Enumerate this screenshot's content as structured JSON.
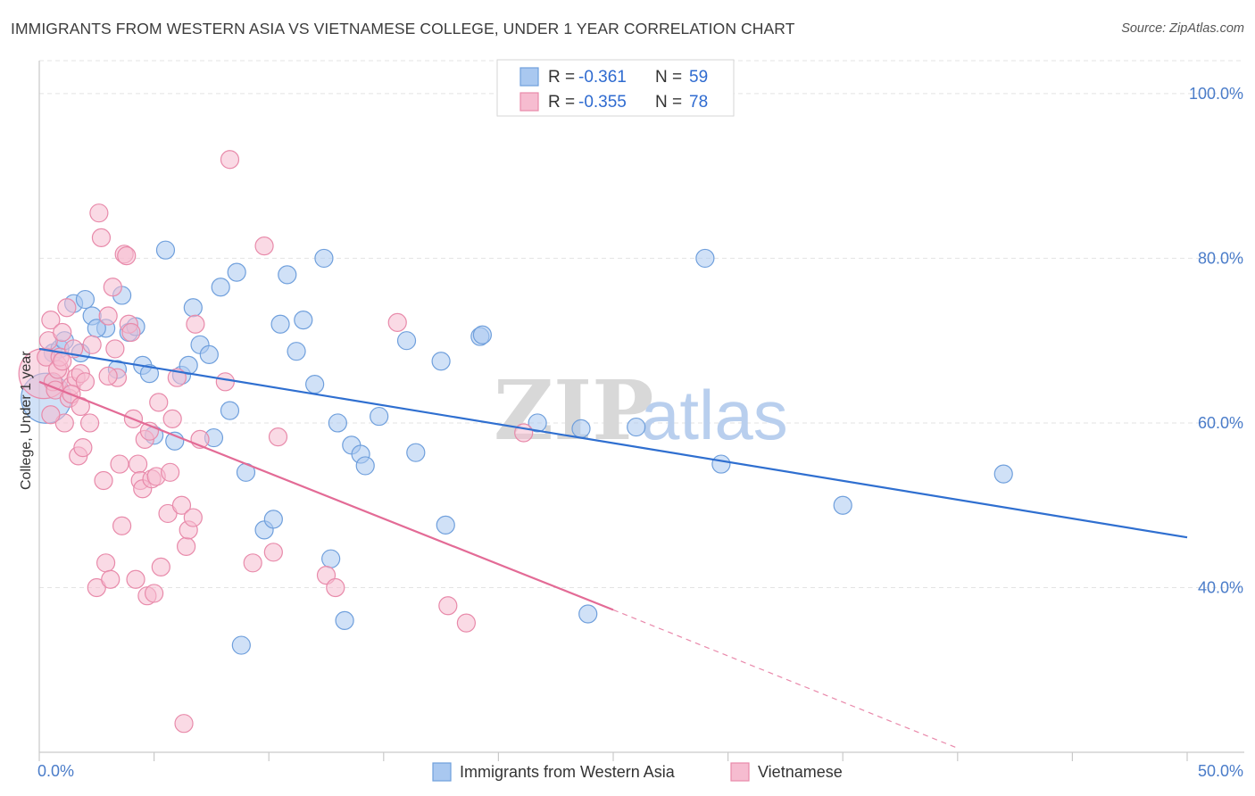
{
  "title": "IMMIGRANTS FROM WESTERN ASIA VS VIETNAMESE COLLEGE, UNDER 1 YEAR CORRELATION CHART",
  "source": "Source: ZipAtlas.com",
  "watermark": {
    "zip": "ZIP",
    "atlas": "atlas"
  },
  "legend": {
    "r_label": "R =",
    "n_label": "N =",
    "entries": [
      {
        "r": "-0.361",
        "n": "59",
        "color": "#a9c8f0",
        "stroke": "#6f9fdc"
      },
      {
        "r": "-0.355",
        "n": "78",
        "color": "#f6bcd0",
        "stroke": "#e88aaa"
      }
    ]
  },
  "chart_data": {
    "type": "scatter",
    "xlabel": "",
    "ylabel": "College, Under 1 year",
    "xlim": [
      0,
      50
    ],
    "ylim": [
      20,
      104
    ],
    "x_ticks": [
      {
        "value": 0,
        "label": "0.0%"
      },
      {
        "value": 50,
        "label": "50.0%"
      }
    ],
    "y_ticks": [
      {
        "value": 100,
        "label": "100.0%"
      },
      {
        "value": 80,
        "label": "80.0%"
      },
      {
        "value": 60,
        "label": "60.0%"
      },
      {
        "value": 40,
        "label": "40.0%"
      }
    ],
    "grid": true,
    "legend_position": "top-center",
    "series": [
      {
        "name": "Immigrants from Western Asia",
        "color": "#a9c8f0",
        "stroke": "#6f9fdc",
        "line_color": "#2f6fd0",
        "trend": {
          "x0": 0,
          "y0": 69.0,
          "x1": 50,
          "y1": 46.1,
          "dash_from": null
        },
        "points": [
          [
            0.3,
            63.0
          ],
          [
            0.6,
            68.5
          ],
          [
            0.9,
            69.0
          ],
          [
            1.1,
            70.0
          ],
          [
            1.5,
            74.5
          ],
          [
            1.8,
            68.5
          ],
          [
            2.0,
            75.0
          ],
          [
            2.3,
            73.0
          ],
          [
            2.9,
            71.5
          ],
          [
            3.4,
            66.5
          ],
          [
            3.6,
            75.5
          ],
          [
            3.9,
            71.0
          ],
          [
            4.2,
            71.7
          ],
          [
            4.5,
            67.0
          ],
          [
            4.8,
            66.0
          ],
          [
            5.0,
            58.5
          ],
          [
            5.5,
            81.0
          ],
          [
            5.9,
            57.8
          ],
          [
            6.2,
            65.8
          ],
          [
            6.5,
            67.0
          ],
          [
            6.7,
            74.0
          ],
          [
            7.0,
            69.5
          ],
          [
            7.4,
            68.3
          ],
          [
            7.6,
            58.2
          ],
          [
            7.9,
            76.5
          ],
          [
            8.3,
            61.5
          ],
          [
            8.6,
            78.3
          ],
          [
            8.8,
            33.0
          ],
          [
            9.0,
            54.0
          ],
          [
            9.8,
            47.0
          ],
          [
            10.2,
            48.3
          ],
          [
            10.5,
            72.0
          ],
          [
            10.8,
            78.0
          ],
          [
            11.2,
            68.7
          ],
          [
            11.5,
            72.5
          ],
          [
            12.0,
            64.7
          ],
          [
            12.4,
            80.0
          ],
          [
            12.7,
            43.5
          ],
          [
            13.0,
            60.0
          ],
          [
            13.3,
            36.0
          ],
          [
            13.6,
            57.3
          ],
          [
            14.0,
            56.2
          ],
          [
            14.2,
            54.8
          ],
          [
            14.8,
            60.8
          ],
          [
            16.0,
            70.0
          ],
          [
            16.4,
            56.4
          ],
          [
            17.5,
            67.5
          ],
          [
            17.7,
            47.6
          ],
          [
            19.2,
            70.5
          ],
          [
            19.3,
            70.7
          ],
          [
            21.7,
            60.0
          ],
          [
            23.6,
            59.3
          ],
          [
            23.9,
            36.8
          ],
          [
            26.0,
            59.5
          ],
          [
            29.0,
            80.0
          ],
          [
            29.7,
            55.0
          ],
          [
            35.0,
            50.0
          ],
          [
            42.0,
            53.8
          ],
          [
            2.5,
            71.5
          ]
        ],
        "point_sizes": [
          28,
          10,
          10,
          10,
          10,
          10,
          10,
          10,
          10,
          10,
          10,
          10,
          10,
          10,
          10,
          10,
          10,
          10,
          10,
          10,
          10,
          10,
          10,
          10,
          10,
          10,
          10,
          10,
          10,
          10,
          10,
          10,
          10,
          10,
          10,
          10,
          10,
          10,
          10,
          10,
          10,
          10,
          10,
          10,
          10,
          10,
          10,
          10,
          10,
          10,
          10,
          10,
          10,
          10,
          10,
          10,
          10,
          10,
          10
        ]
      },
      {
        "name": "Vietnamese",
        "color": "#f6bcd0",
        "stroke": "#e88aaa",
        "line_color": "#e36b96",
        "trend": {
          "x0": 0,
          "y0": 65.0,
          "x1": 25,
          "y1": 37.3,
          "dash_from": 25,
          "dash_x1": 40,
          "dash_y1": 20.5
        },
        "points": [
          [
            0.2,
            66.0
          ],
          [
            0.3,
            68.0
          ],
          [
            0.4,
            70.0
          ],
          [
            0.5,
            72.5
          ],
          [
            0.6,
            65.0
          ],
          [
            0.7,
            64.0
          ],
          [
            0.8,
            66.5
          ],
          [
            0.9,
            68.0
          ],
          [
            1.0,
            71.0
          ],
          [
            1.1,
            60.0
          ],
          [
            1.2,
            74.0
          ],
          [
            1.3,
            63.0
          ],
          [
            1.4,
            64.5
          ],
          [
            1.5,
            69.0
          ],
          [
            1.6,
            65.5
          ],
          [
            1.7,
            56.0
          ],
          [
            1.8,
            66.0
          ],
          [
            1.9,
            57.0
          ],
          [
            2.2,
            60.0
          ],
          [
            2.3,
            69.5
          ],
          [
            2.5,
            40.0
          ],
          [
            2.6,
            85.5
          ],
          [
            2.7,
            82.5
          ],
          [
            2.8,
            53.0
          ],
          [
            2.9,
            43.0
          ],
          [
            3.0,
            73.0
          ],
          [
            3.1,
            41.0
          ],
          [
            3.2,
            76.5
          ],
          [
            3.3,
            69.0
          ],
          [
            3.4,
            65.5
          ],
          [
            3.5,
            55.0
          ],
          [
            3.6,
            47.5
          ],
          [
            3.7,
            80.5
          ],
          [
            3.8,
            80.3
          ],
          [
            3.9,
            72.0
          ],
          [
            4.0,
            71.0
          ],
          [
            4.1,
            60.5
          ],
          [
            4.2,
            41.0
          ],
          [
            4.3,
            55.0
          ],
          [
            4.4,
            53.0
          ],
          [
            4.5,
            52.0
          ],
          [
            4.6,
            58.0
          ],
          [
            4.7,
            39.0
          ],
          [
            4.8,
            59.0
          ],
          [
            4.9,
            53.2
          ],
          [
            5.0,
            39.3
          ],
          [
            5.1,
            53.5
          ],
          [
            5.2,
            62.5
          ],
          [
            5.3,
            42.5
          ],
          [
            5.6,
            49.0
          ],
          [
            5.7,
            54.0
          ],
          [
            5.8,
            60.5
          ],
          [
            6.0,
            65.5
          ],
          [
            6.2,
            50.0
          ],
          [
            6.3,
            23.5
          ],
          [
            6.4,
            45.0
          ],
          [
            6.5,
            47.0
          ],
          [
            6.7,
            48.5
          ],
          [
            6.8,
            72.0
          ],
          [
            7.0,
            58.0
          ],
          [
            8.1,
            65.0
          ],
          [
            8.3,
            92.0
          ],
          [
            9.3,
            43.0
          ],
          [
            9.8,
            81.5
          ],
          [
            10.2,
            44.3
          ],
          [
            10.4,
            58.3
          ],
          [
            12.5,
            41.5
          ],
          [
            12.9,
            40.0
          ],
          [
            15.6,
            72.2
          ],
          [
            17.8,
            37.8
          ],
          [
            18.6,
            35.7
          ],
          [
            21.1,
            58.8
          ],
          [
            1.4,
            63.5
          ],
          [
            2.0,
            65.0
          ],
          [
            3.0,
            65.7
          ],
          [
            1.0,
            67.5
          ],
          [
            0.5,
            61.0
          ],
          [
            1.8,
            62.0
          ]
        ],
        "point_sizes": [
          28,
          10,
          10,
          10,
          10,
          10,
          10,
          10,
          10,
          10,
          10,
          10,
          10,
          10,
          10,
          10,
          10,
          10,
          10,
          10,
          10,
          10,
          10,
          10,
          10,
          10,
          10,
          10,
          10,
          10,
          10,
          10,
          10,
          10,
          10,
          10,
          10,
          10,
          10,
          10,
          10,
          10,
          10,
          10,
          10,
          10,
          10,
          10,
          10,
          10,
          10,
          10,
          10,
          10,
          10,
          10,
          10,
          10,
          10,
          10,
          10,
          10,
          10,
          10,
          10,
          10,
          10,
          10,
          10,
          10,
          10,
          10,
          10,
          10,
          10,
          10,
          10,
          10
        ]
      }
    ]
  }
}
